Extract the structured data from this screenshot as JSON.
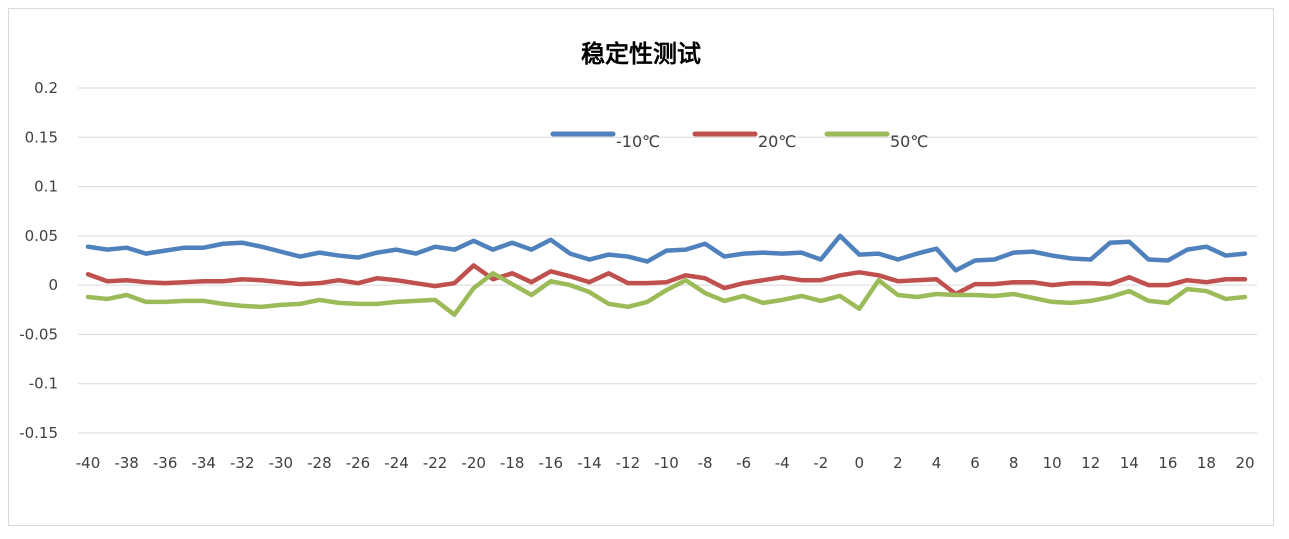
{
  "chart_data": {
    "type": "line",
    "title": "稳定性测试",
    "xlabel": "",
    "ylabel": "",
    "xlim": [
      -40,
      20
    ],
    "ylim": [
      -0.15,
      0.2
    ],
    "y_ticks": [
      0.2,
      0.15,
      0.1,
      0.05,
      0,
      -0.05,
      -0.1,
      -0.15
    ],
    "x_ticks": [
      -40,
      -38,
      -36,
      -34,
      -32,
      -30,
      -28,
      -26,
      -24,
      -22,
      -20,
      -18,
      -16,
      -14,
      -12,
      -10,
      -8,
      -6,
      -4,
      -2,
      0,
      2,
      4,
      6,
      8,
      10,
      12,
      14,
      16,
      18,
      20
    ],
    "grid": "horizontal",
    "legend_position": "top",
    "x": [
      -40,
      -39,
      -38,
      -37,
      -36,
      -35,
      -34,
      -33,
      -32,
      -31,
      -30,
      -29,
      -28,
      -27,
      -26,
      -25,
      -24,
      -23,
      -22,
      -21,
      -20,
      -19,
      -18,
      -17,
      -16,
      -15,
      -14,
      -13,
      -12,
      -11,
      -10,
      -9,
      -8,
      -7,
      -6,
      -5,
      -4,
      -3,
      -2,
      -1,
      0,
      1,
      2,
      3,
      4,
      5,
      6,
      7,
      8,
      9,
      10,
      11,
      12,
      13,
      14,
      15,
      16,
      17,
      18,
      19,
      20
    ],
    "series": [
      {
        "name": "-10℃",
        "color": "#4f81bd",
        "values": [
          0.039,
          0.036,
          0.038,
          0.032,
          0.035,
          0.038,
          0.038,
          0.042,
          0.043,
          0.039,
          0.034,
          0.029,
          0.033,
          0.03,
          0.028,
          0.033,
          0.036,
          0.032,
          0.039,
          0.036,
          0.045,
          0.036,
          0.043,
          0.036,
          0.046,
          0.032,
          0.026,
          0.031,
          0.029,
          0.024,
          0.035,
          0.036,
          0.042,
          0.029,
          0.032,
          0.033,
          0.032,
          0.033,
          0.026,
          0.05,
          0.031,
          0.032,
          0.026,
          0.032,
          0.037,
          0.015,
          0.025,
          0.026,
          0.033,
          0.034,
          0.03,
          0.027,
          0.026,
          0.043,
          0.044,
          0.026,
          0.025,
          0.036,
          0.039,
          0.03,
          0.032
        ]
      },
      {
        "name": "20℃",
        "color": "#c0504d",
        "values": [
          0.011,
          0.004,
          0.005,
          0.003,
          0.002,
          0.003,
          0.004,
          0.004,
          0.006,
          0.005,
          0.003,
          0.001,
          0.002,
          0.005,
          0.002,
          0.007,
          0.005,
          0.002,
          -0.001,
          0.002,
          0.02,
          0.006,
          0.012,
          0.003,
          0.014,
          0.009,
          0.003,
          0.012,
          0.002,
          0.002,
          0.003,
          0.01,
          0.007,
          -0.003,
          0.002,
          0.005,
          0.008,
          0.005,
          0.005,
          0.01,
          0.013,
          0.01,
          0.004,
          0.005,
          0.006,
          -0.009,
          0.001,
          0.001,
          0.003,
          0.003,
          0.0,
          0.002,
          0.002,
          0.001,
          0.008,
          0.0,
          0.0,
          0.005,
          0.003,
          0.006,
          0.006
        ]
      },
      {
        "name": "50℃",
        "color": "#9bbb59",
        "values": [
          -0.012,
          -0.014,
          -0.01,
          -0.017,
          -0.017,
          -0.016,
          -0.016,
          -0.019,
          -0.021,
          -0.022,
          -0.02,
          -0.019,
          -0.015,
          -0.018,
          -0.019,
          -0.019,
          -0.017,
          -0.016,
          -0.015,
          -0.03,
          -0.003,
          0.012,
          0.001,
          -0.01,
          0.004,
          0.0,
          -0.007,
          -0.019,
          -0.022,
          -0.017,
          -0.005,
          0.005,
          -0.008,
          -0.016,
          -0.011,
          -0.018,
          -0.015,
          -0.011,
          -0.016,
          -0.011,
          -0.024,
          0.005,
          -0.01,
          -0.012,
          -0.009,
          -0.01,
          -0.01,
          -0.011,
          -0.009,
          -0.013,
          -0.017,
          -0.018,
          -0.016,
          -0.012,
          -0.006,
          -0.016,
          -0.018,
          -0.004,
          -0.006,
          -0.014,
          -0.012
        ]
      }
    ]
  }
}
